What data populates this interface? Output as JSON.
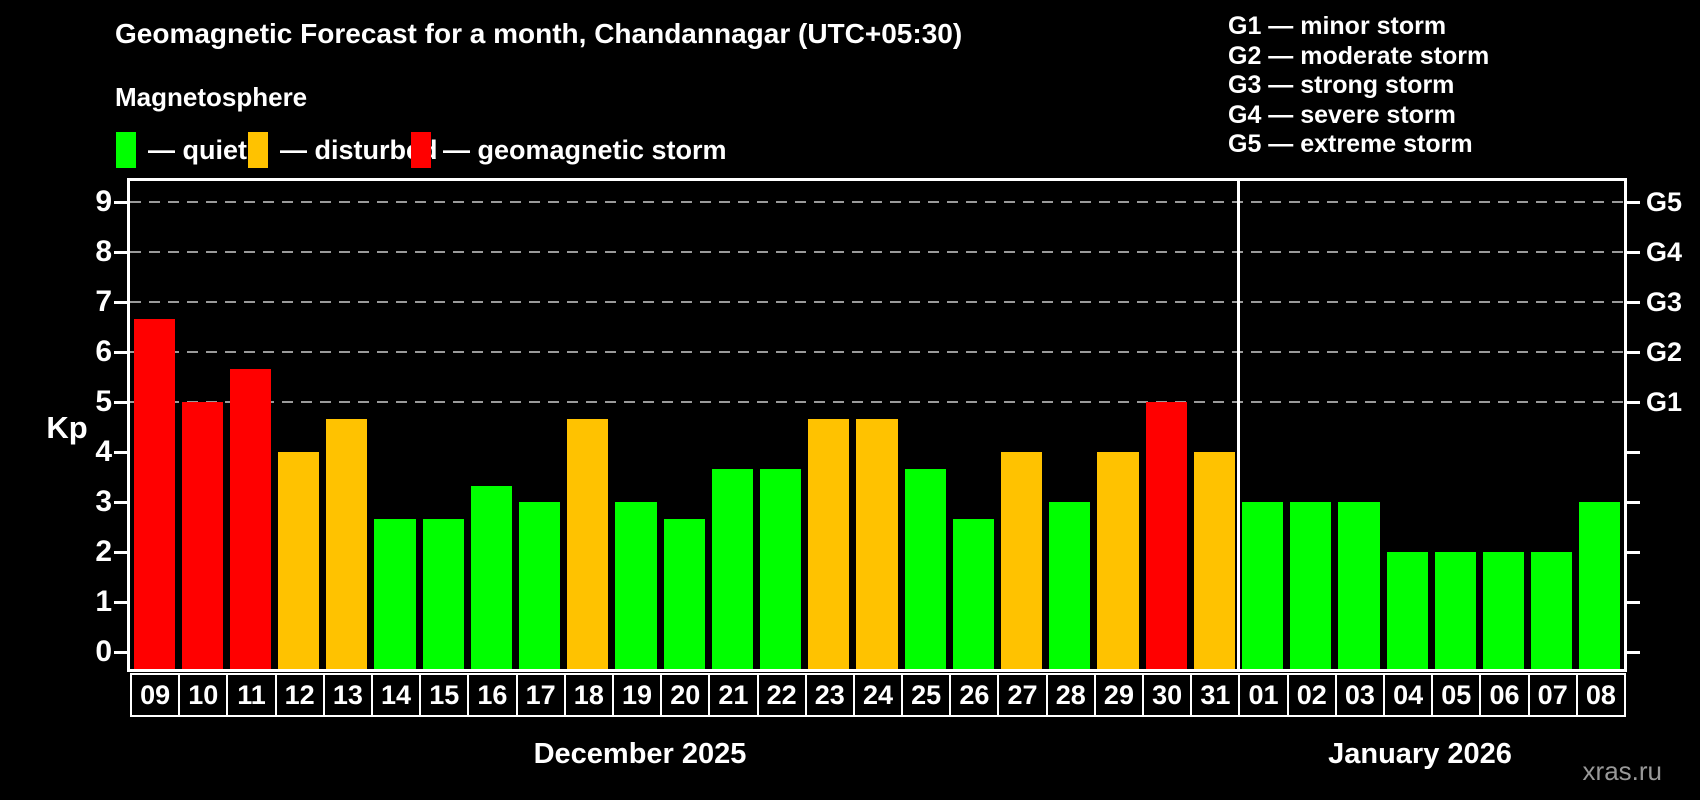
{
  "header": {
    "title": "Geomagnetic Forecast for a month, Chandannagar (UTC+05:30)",
    "subtitle": "Magnetosphere"
  },
  "legend": {
    "items": [
      {
        "key": "quiet",
        "label": "— quiet"
      },
      {
        "key": "disturbed",
        "label": "— disturbed"
      },
      {
        "key": "storm",
        "label": "— geomagnetic storm"
      }
    ]
  },
  "g_legend": {
    "items": [
      "G1 — minor storm",
      "G2 — moderate storm",
      "G3 — strong storm",
      "G4 — severe storm",
      "G5 — extreme storm"
    ]
  },
  "colors": {
    "quiet": "#00ff00",
    "disturbed": "#ffc200",
    "storm": "#ff0000",
    "background": "#000000",
    "axis": "#ffffff",
    "grid": "#9a9a9a",
    "watermark": "#999999"
  },
  "chart_data": {
    "type": "bar",
    "ylabel": "Kp",
    "ylim": [
      -0.34,
      9.42
    ],
    "yticks": [
      0,
      1,
      2,
      3,
      4,
      5,
      6,
      7,
      8,
      9
    ],
    "gridlines": [
      5,
      6,
      7,
      8,
      9
    ],
    "grid_style": "dashed",
    "right_axis_labels": [
      {
        "value": 5,
        "label": "G1"
      },
      {
        "value": 6,
        "label": "G2"
      },
      {
        "value": 7,
        "label": "G3"
      },
      {
        "value": 8,
        "label": "G4"
      },
      {
        "value": 9,
        "label": "G5"
      }
    ],
    "months": [
      {
        "label": "December 2025",
        "days": [
          {
            "day": "09",
            "kp": 6.67,
            "status": "storm"
          },
          {
            "day": "10",
            "kp": 5.0,
            "status": "storm"
          },
          {
            "day": "11",
            "kp": 5.67,
            "status": "storm"
          },
          {
            "day": "12",
            "kp": 4.0,
            "status": "disturbed"
          },
          {
            "day": "13",
            "kp": 4.67,
            "status": "disturbed"
          },
          {
            "day": "14",
            "kp": 2.67,
            "status": "quiet"
          },
          {
            "day": "15",
            "kp": 2.67,
            "status": "quiet"
          },
          {
            "day": "16",
            "kp": 3.33,
            "status": "quiet"
          },
          {
            "day": "17",
            "kp": 3.0,
            "status": "quiet"
          },
          {
            "day": "18",
            "kp": 4.67,
            "status": "disturbed"
          },
          {
            "day": "19",
            "kp": 3.0,
            "status": "quiet"
          },
          {
            "day": "20",
            "kp": 2.67,
            "status": "quiet"
          },
          {
            "day": "21",
            "kp": 3.67,
            "status": "quiet"
          },
          {
            "day": "22",
            "kp": 3.67,
            "status": "quiet"
          },
          {
            "day": "23",
            "kp": 4.67,
            "status": "disturbed"
          },
          {
            "day": "24",
            "kp": 4.67,
            "status": "disturbed"
          },
          {
            "day": "25",
            "kp": 3.67,
            "status": "quiet"
          },
          {
            "day": "26",
            "kp": 2.67,
            "status": "quiet"
          },
          {
            "day": "27",
            "kp": 4.0,
            "status": "disturbed"
          },
          {
            "day": "28",
            "kp": 3.0,
            "status": "quiet"
          },
          {
            "day": "29",
            "kp": 4.0,
            "status": "disturbed"
          },
          {
            "day": "30",
            "kp": 5.0,
            "status": "storm"
          },
          {
            "day": "31",
            "kp": 4.0,
            "status": "disturbed"
          }
        ]
      },
      {
        "label": "January 2026",
        "days": [
          {
            "day": "01",
            "kp": 3.0,
            "status": "quiet"
          },
          {
            "day": "02",
            "kp": 3.0,
            "status": "quiet"
          },
          {
            "day": "03",
            "kp": 3.0,
            "status": "quiet"
          },
          {
            "day": "04",
            "kp": 2.0,
            "status": "quiet"
          },
          {
            "day": "05",
            "kp": 2.0,
            "status": "quiet"
          },
          {
            "day": "06",
            "kp": 2.0,
            "status": "quiet"
          },
          {
            "day": "07",
            "kp": 2.0,
            "status": "quiet"
          },
          {
            "day": "08",
            "kp": 3.0,
            "status": "quiet"
          }
        ]
      }
    ]
  },
  "watermark": "xras.ru"
}
